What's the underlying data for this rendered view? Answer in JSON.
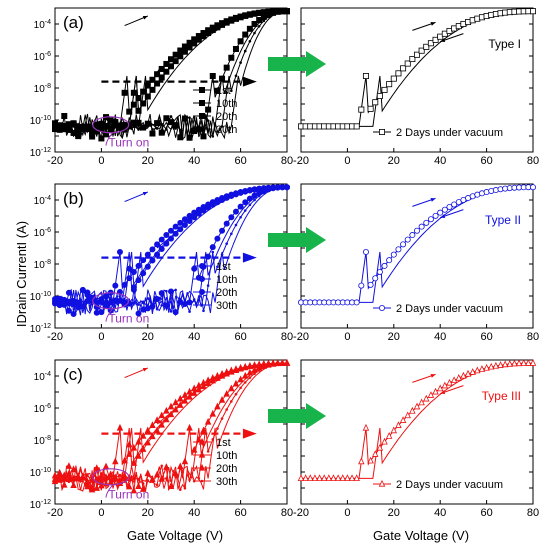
{
  "figure": {
    "ylabel": "IDrain CurrentI (A)",
    "xlabel_left": "Gate Voltage (V)",
    "xlabel_right": "Gate Voltage (V)"
  },
  "colors": {
    "black": "#000000",
    "blue": "#1010e0",
    "red": "#ee1111",
    "purple": "#9933bb",
    "green": "#19b34c"
  },
  "chart_data": [
    {
      "panel": "a-left",
      "type": "line",
      "title": "(a)",
      "color": "#000000",
      "xlim": [
        -20,
        80
      ],
      "ylim_exp": [
        -12,
        -3
      ],
      "y_log": true,
      "x_ticks": [
        "-20",
        "0",
        "20",
        "40",
        "60",
        "80"
      ],
      "y_ticks": [
        "10-12",
        "10-10",
        "10-8",
        "10-6",
        "10-4"
      ],
      "annotation": "Turn on",
      "legend": [
        "1st",
        "10th",
        "20th",
        "30th"
      ],
      "series": [
        {
          "name": "1st",
          "marker": "square",
          "v_on": 8
        },
        {
          "name": "10th",
          "marker": "square",
          "v_on": 12
        },
        {
          "name": "20th",
          "marker": "square",
          "v_on": 45
        },
        {
          "name": "30th",
          "marker": "star",
          "v_on": 52
        }
      ]
    },
    {
      "panel": "a-right",
      "type": "line",
      "color": "#000000",
      "xlim": [
        -20,
        80
      ],
      "ylim_exp": [
        -12,
        -3
      ],
      "y_log": true,
      "x_ticks": [
        "-20",
        "0",
        "20",
        "40",
        "60",
        "80"
      ],
      "label": "Type I",
      "legend": [
        "2 Days under vacuum"
      ],
      "series": [
        {
          "name": "2 Days under vacuum",
          "marker": "open-square",
          "v_on": 5
        }
      ]
    },
    {
      "panel": "b-left",
      "type": "line",
      "title": "(b)",
      "color": "#1010e0",
      "xlim": [
        -20,
        80
      ],
      "ylim_exp": [
        -12,
        -3
      ],
      "y_log": true,
      "x_ticks": [
        "-20",
        "0",
        "20",
        "40",
        "60",
        "80"
      ],
      "y_ticks": [
        "10-12",
        "10-10",
        "10-8",
        "10-6",
        "10-4"
      ],
      "annotation": "Turn on",
      "legend": [
        "1st",
        "10th",
        "20th",
        "30th"
      ],
      "series": [
        {
          "name": "1st",
          "marker": "circle",
          "v_on": 5
        },
        {
          "name": "10th",
          "marker": "circle",
          "v_on": 10
        },
        {
          "name": "20th",
          "marker": "circle",
          "v_on": 38
        },
        {
          "name": "30th",
          "marker": "star",
          "v_on": 45
        }
      ]
    },
    {
      "panel": "b-right",
      "type": "line",
      "color": "#1010e0",
      "xlim": [
        -20,
        80
      ],
      "ylim_exp": [
        -12,
        -3
      ],
      "y_log": true,
      "x_ticks": [
        "-20",
        "0",
        "20",
        "40",
        "60",
        "80"
      ],
      "label": "Type II",
      "legend": [
        "2 Days under vacuum"
      ],
      "series": [
        {
          "name": "2 Days under vacuum",
          "marker": "open-circle",
          "v_on": 5
        }
      ]
    },
    {
      "panel": "c-left",
      "type": "line",
      "title": "(c)",
      "color": "#ee1111",
      "xlim": [
        -20,
        80
      ],
      "ylim_exp": [
        -12,
        -3
      ],
      "y_log": true,
      "x_ticks": [
        "-20",
        "0",
        "20",
        "40",
        "60",
        "80"
      ],
      "y_ticks": [
        "10-12",
        "10-10",
        "10-8",
        "10-6",
        "10-4"
      ],
      "annotation": "Turn on",
      "legend": [
        "1st",
        "10th",
        "20th",
        "30th"
      ],
      "series": [
        {
          "name": "1st",
          "marker": "triangle",
          "v_on": 5
        },
        {
          "name": "10th",
          "marker": "triangle",
          "v_on": 10
        },
        {
          "name": "20th",
          "marker": "triangle",
          "v_on": 35
        },
        {
          "name": "30th",
          "marker": "star",
          "v_on": 42
        }
      ]
    },
    {
      "panel": "c-right",
      "type": "line",
      "color": "#ee1111",
      "xlim": [
        -20,
        80
      ],
      "ylim_exp": [
        -12,
        -3
      ],
      "y_log": true,
      "x_ticks": [
        "-20",
        "0",
        "20",
        "40",
        "60",
        "80"
      ],
      "label": "Type III",
      "legend": [
        "2 Days under vacuum"
      ],
      "series": [
        {
          "name": "2 Days under vacuum",
          "marker": "open-triangle",
          "v_on": 5
        }
      ]
    }
  ]
}
